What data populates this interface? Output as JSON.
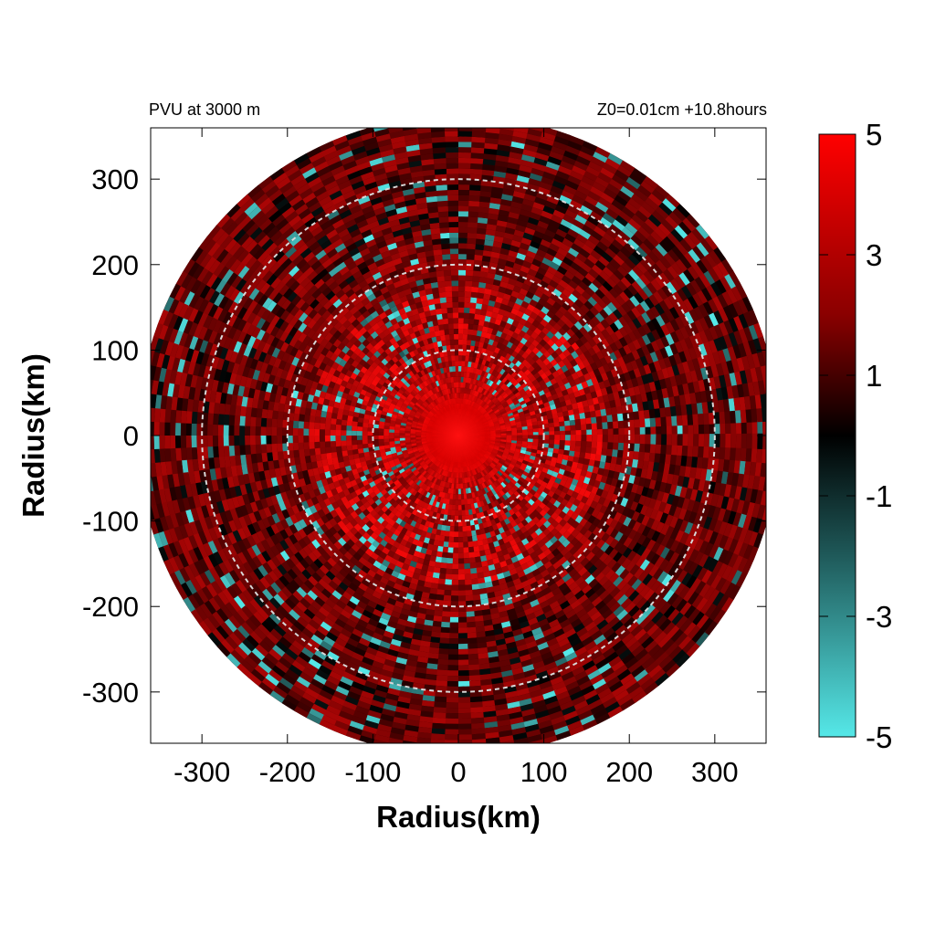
{
  "chart_data": {
    "type": "heatmap",
    "title_left": "PVU at  3000 m",
    "title_right": "Z0=0.01cm  +10.8hours",
    "xlabel": "Radius(km)",
    "ylabel": "Radius(km)",
    "xlim": [
      -360,
      360
    ],
    "ylim": [
      -360,
      360
    ],
    "x_ticks": [
      -300,
      -200,
      -100,
      0,
      100,
      200,
      300
    ],
    "y_ticks": [
      -300,
      -200,
      -100,
      0,
      100,
      200,
      300
    ],
    "x_tick_labels": [
      "-300",
      "-200",
      "-100",
      "0",
      "100",
      "200",
      "300"
    ],
    "y_tick_labels": [
      "-300",
      "-200",
      "-100",
      "0",
      "100",
      "200",
      "300"
    ],
    "domain_radius_km": 375,
    "reference_circles_km": [
      100,
      200,
      300
    ],
    "colorbar": {
      "range": [
        -5,
        5
      ],
      "tick_values": [
        5,
        3,
        1,
        -1,
        -3,
        -5
      ],
      "tick_labels": [
        "5",
        "3",
        "1",
        "-1",
        "-3",
        "-5"
      ],
      "colors": {
        "high": "#ff0000",
        "mid": "#000000",
        "low": "#55e8e8"
      }
    },
    "field_description_values": [
      {
        "region": "center (r < 40 km)",
        "approx_value": 4
      },
      {
        "region": "inner ring (80-170 km)",
        "approx_value": 3
      },
      {
        "region": "outer region (> 200 km)",
        "approx_value": 1
      }
    ]
  }
}
